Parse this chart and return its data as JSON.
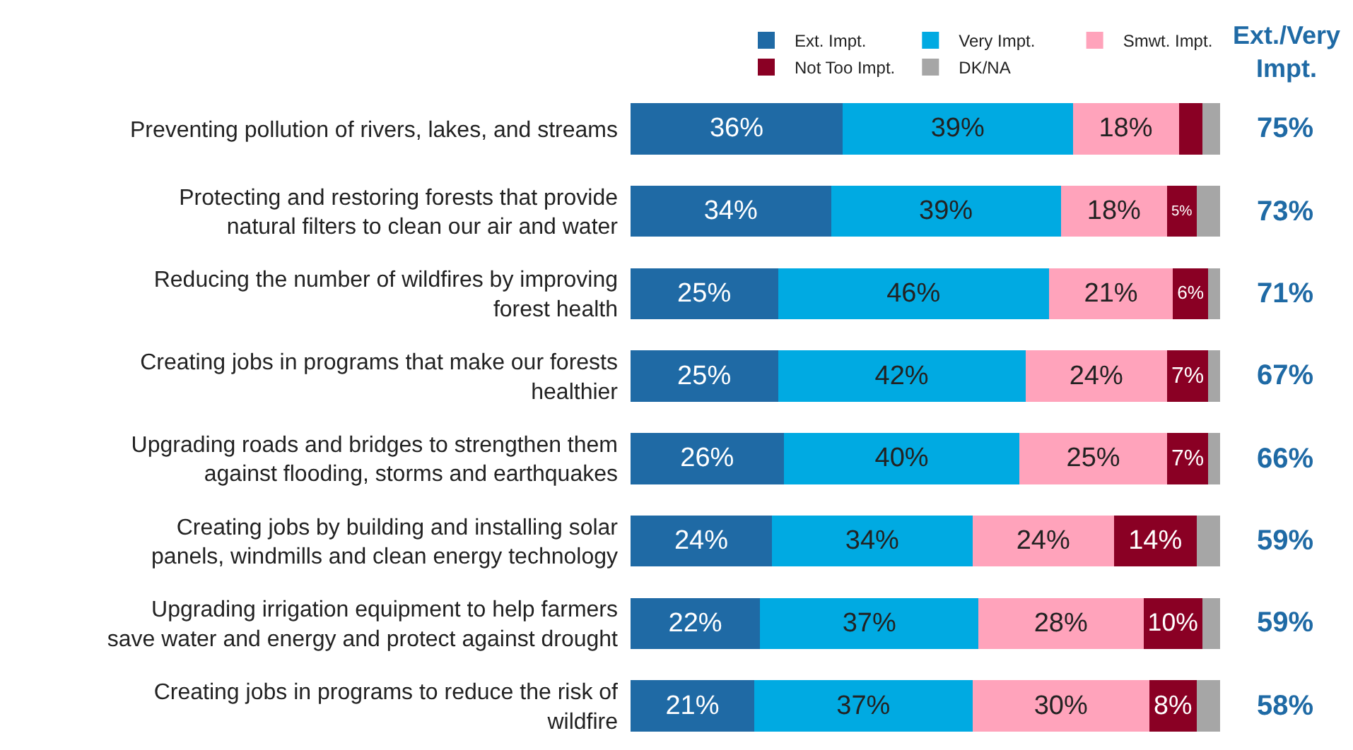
{
  "chart_data": {
    "type": "bar",
    "orientation": "horizontal",
    "stacked": true,
    "categories": [
      "Preventing pollution of rivers, lakes, and streams",
      "Protecting and restoring forests that provide natural filters to clean our air and water",
      "Reducing the number of wildfires by improving forest health",
      "Creating jobs in programs that make our forests healthier",
      "Upgrading roads and bridges to strengthen them against flooding, storms and earthquakes",
      "Creating jobs by building and installing solar panels, windmills and clean energy technology",
      "Upgrading irrigation equipment to help farmers save water and energy and protect against drought",
      "Creating jobs in programs to reduce the risk of wildfire"
    ],
    "series": [
      {
        "name": "Ext. Impt.",
        "color": "#1f6aa5",
        "values": [
          36,
          34,
          25,
          25,
          26,
          24,
          22,
          21
        ],
        "value_labels": [
          "36%",
          "34%",
          "25%",
          "25%",
          "26%",
          "24%",
          "22%",
          "21%"
        ]
      },
      {
        "name": "Very Impt.",
        "color": "#00aae2",
        "values": [
          39,
          39,
          46,
          42,
          40,
          34,
          37,
          37
        ],
        "value_labels": [
          "39%",
          "39%",
          "46%",
          "42%",
          "40%",
          "34%",
          "37%",
          "37%"
        ]
      },
      {
        "name": "Smwt. Impt.",
        "color": "#ffa3bb",
        "values": [
          18,
          18,
          21,
          24,
          25,
          24,
          28,
          30
        ],
        "value_labels": [
          "18%",
          "18%",
          "21%",
          "24%",
          "25%",
          "24%",
          "28%",
          "30%"
        ]
      },
      {
        "name": "Not Too Impt.",
        "color": "#8a0024",
        "values": [
          4,
          5,
          6,
          7,
          7,
          14,
          10,
          8
        ],
        "value_labels": [
          null,
          "5%",
          "6%",
          "7%",
          "7%",
          "14%",
          "10%",
          "8%"
        ]
      },
      {
        "name": "DK/NA",
        "color": "#a6a6a6",
        "values": [
          3,
          4,
          2,
          2,
          2,
          4,
          3,
          4
        ],
        "value_labels": [
          null,
          null,
          null,
          null,
          null,
          null,
          null,
          null
        ]
      }
    ],
    "xlim": [
      0,
      100
    ],
    "tick_labels": false,
    "legend": "top right",
    "annotations": [
      "Ext./Very Impt.",
      "75%",
      "73%",
      "71%",
      "67%",
      "66%",
      "59%",
      "59%",
      "58%"
    ]
  }
}
